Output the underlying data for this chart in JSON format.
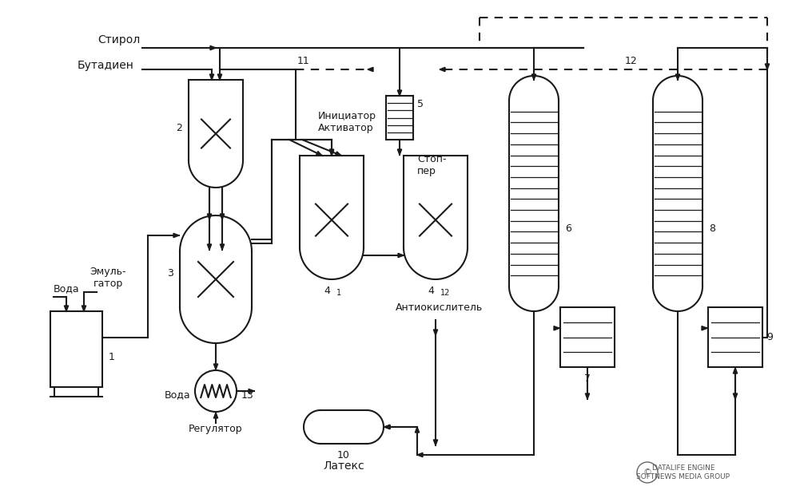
{
  "bg_color": "#ffffff",
  "line_color": "#1a1a1a",
  "labels": {
    "stirol": "Стирол",
    "butadien": "Бутадиен",
    "voda1": "Вода",
    "emulgator": "Эмуль-\nгатор",
    "iniciator": "Инициатор",
    "aktivator": "Активатор",
    "stopper": "Стоп-\nпер",
    "antioxidant": "Антиокислитель",
    "voda2": "Вода",
    "regulyator": "Регулятор",
    "latex": "Латекс",
    "num1": "1",
    "num2": "2",
    "num3": "3",
    "num41": "4",
    "num41sub": "1",
    "num412": "4",
    "num412sub": "12",
    "num5": "5",
    "num6": "6",
    "num7": "7",
    "num8": "8",
    "num9": "9",
    "num10": "10",
    "num11": "11",
    "num12": "12",
    "num13": "13"
  }
}
